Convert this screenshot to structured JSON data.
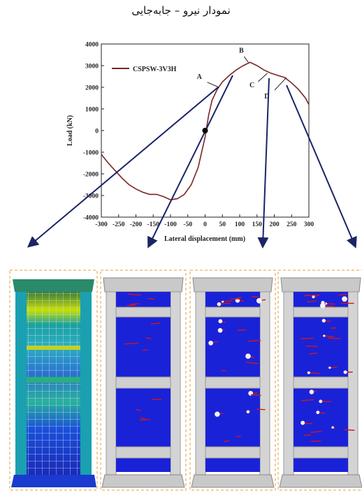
{
  "caption": "نمودار نیرو – جابه‌جایی",
  "chart_data": {
    "type": "line",
    "title": "",
    "xlabel": "Lateral displacement (mm)",
    "ylabel": "Load (kN)",
    "xlim": [
      -300,
      300
    ],
    "ylim": [
      -4000,
      4000
    ],
    "xticks": [
      -300,
      -250,
      -200,
      -150,
      -100,
      -50,
      0,
      50,
      100,
      150,
      200,
      250,
      300
    ],
    "yticks": [
      -4000,
      -3000,
      -2000,
      -1000,
      0,
      1000,
      2000,
      3000,
      4000
    ],
    "grid": false,
    "legend": "top-left",
    "color": "#7a2626",
    "series": [
      {
        "name": "CSPSW-3V3H",
        "x": [
          -300,
          -280,
          -260,
          -240,
          -220,
          -200,
          -180,
          -160,
          -140,
          -120,
          -100,
          -80,
          -60,
          -40,
          -20,
          0,
          10,
          20,
          35,
          50,
          70,
          90,
          110,
          130,
          150,
          170,
          190,
          210,
          230,
          250,
          270,
          290,
          300
        ],
        "y": [
          -1100,
          -1500,
          -1850,
          -2200,
          -2500,
          -2700,
          -2850,
          -2950,
          -2950,
          -3050,
          -3200,
          -3150,
          -2950,
          -2500,
          -1700,
          -300,
          700,
          1400,
          1900,
          2250,
          2550,
          2800,
          3000,
          3150,
          3000,
          2800,
          2650,
          2550,
          2450,
          2200,
          1900,
          1500,
          1200
        ]
      }
    ],
    "marker_point": {
      "x": 0,
      "y": 0
    },
    "annotations": [
      {
        "label": "A",
        "x": 40,
        "y": 2000
      },
      {
        "label": "B",
        "x": 125,
        "y": 3150
      },
      {
        "label": "C",
        "x": 180,
        "y": 2650
      },
      {
        "label": "D",
        "x": 235,
        "y": 2450
      }
    ]
  },
  "panels": [
    {
      "name": "stress-contour-panel"
    },
    {
      "name": "damage-panel-b"
    },
    {
      "name": "damage-panel-c"
    },
    {
      "name": "damage-panel-d"
    }
  ]
}
